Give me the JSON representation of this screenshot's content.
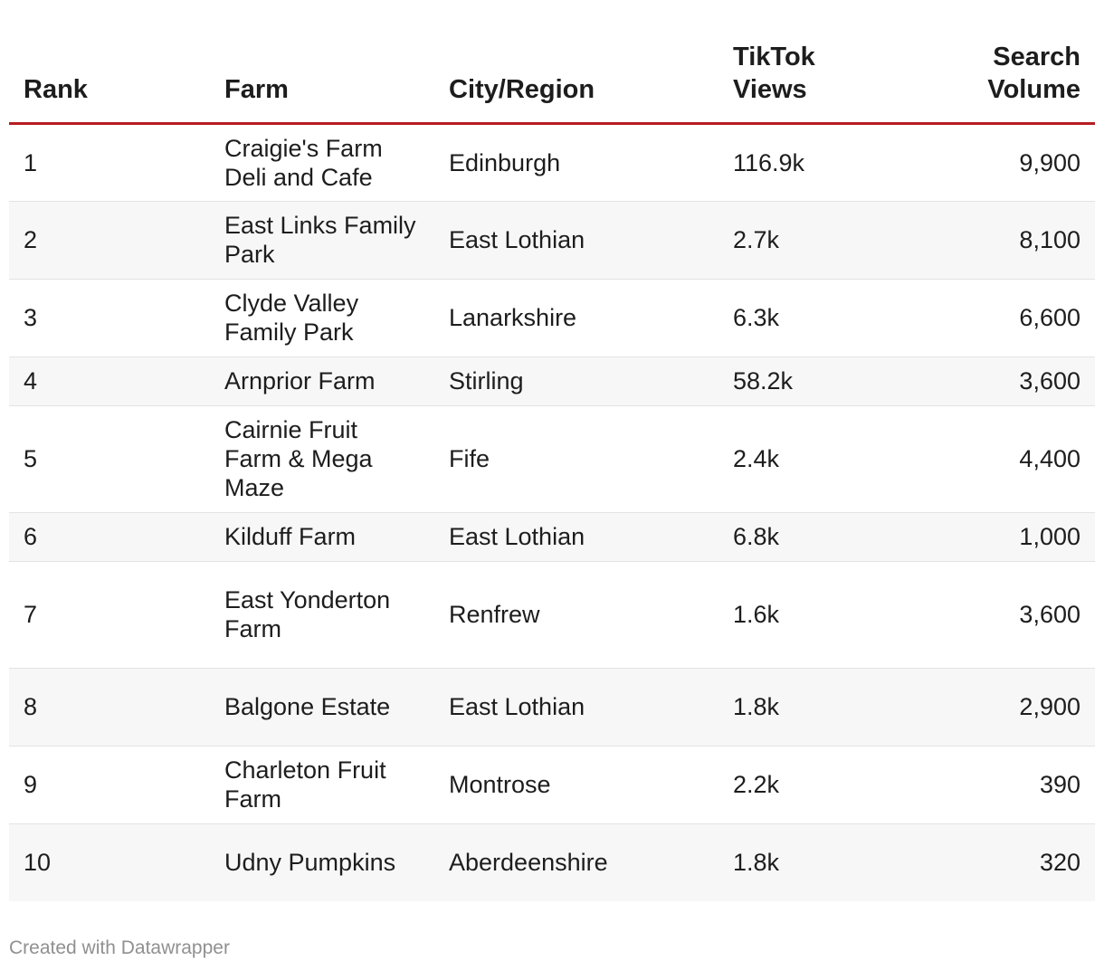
{
  "chart_data": {
    "type": "table",
    "columns": [
      "Rank",
      "Farm",
      "City/Region",
      "TikTok Views",
      "Search Volume"
    ],
    "rows": [
      {
        "rank": "1",
        "farm": "Craigie's Farm Deli and Cafe",
        "city": "Edinburgh",
        "views": "116.9k",
        "search": "9,900"
      },
      {
        "rank": "2",
        "farm": "East Links Family Park",
        "city": "East Lothian",
        "views": "2.7k",
        "search": "8,100"
      },
      {
        "rank": "3",
        "farm": "Clyde Valley Family Park",
        "city": "Lanarkshire",
        "views": "6.3k",
        "search": "6,600"
      },
      {
        "rank": "4",
        "farm": "Arnprior Farm",
        "city": "Stirling",
        "views": "58.2k",
        "search": "3,600"
      },
      {
        "rank": "5",
        "farm": "Cairnie Fruit Farm & Mega Maze",
        "city": "Fife",
        "views": "2.4k",
        "search": "4,400"
      },
      {
        "rank": "6",
        "farm": "Kilduff Farm",
        "city": "East Lothian",
        "views": "6.8k",
        "search": "1,000"
      },
      {
        "rank": "7",
        "farm": "East Yonderton Farm",
        "city": "Renfrew",
        "views": "1.6k",
        "search": "3,600"
      },
      {
        "rank": "8",
        "farm": "Balgone Estate",
        "city": "East Lothian",
        "views": "1.8k",
        "search": "2,900"
      },
      {
        "rank": "9",
        "farm": "Charleton Fruit Farm",
        "city": "Montrose",
        "views": "2.2k",
        "search": "390"
      },
      {
        "rank": "10",
        "farm": "Udny Pumpkins",
        "city": "Aberdeenshire",
        "views": "1.8k",
        "search": "320"
      }
    ]
  },
  "colors": {
    "header_rule": "#b81c23",
    "stripe": "#f7f7f7",
    "footer_text": "#909090"
  },
  "footer": {
    "credit": "Created with Datawrapper"
  }
}
